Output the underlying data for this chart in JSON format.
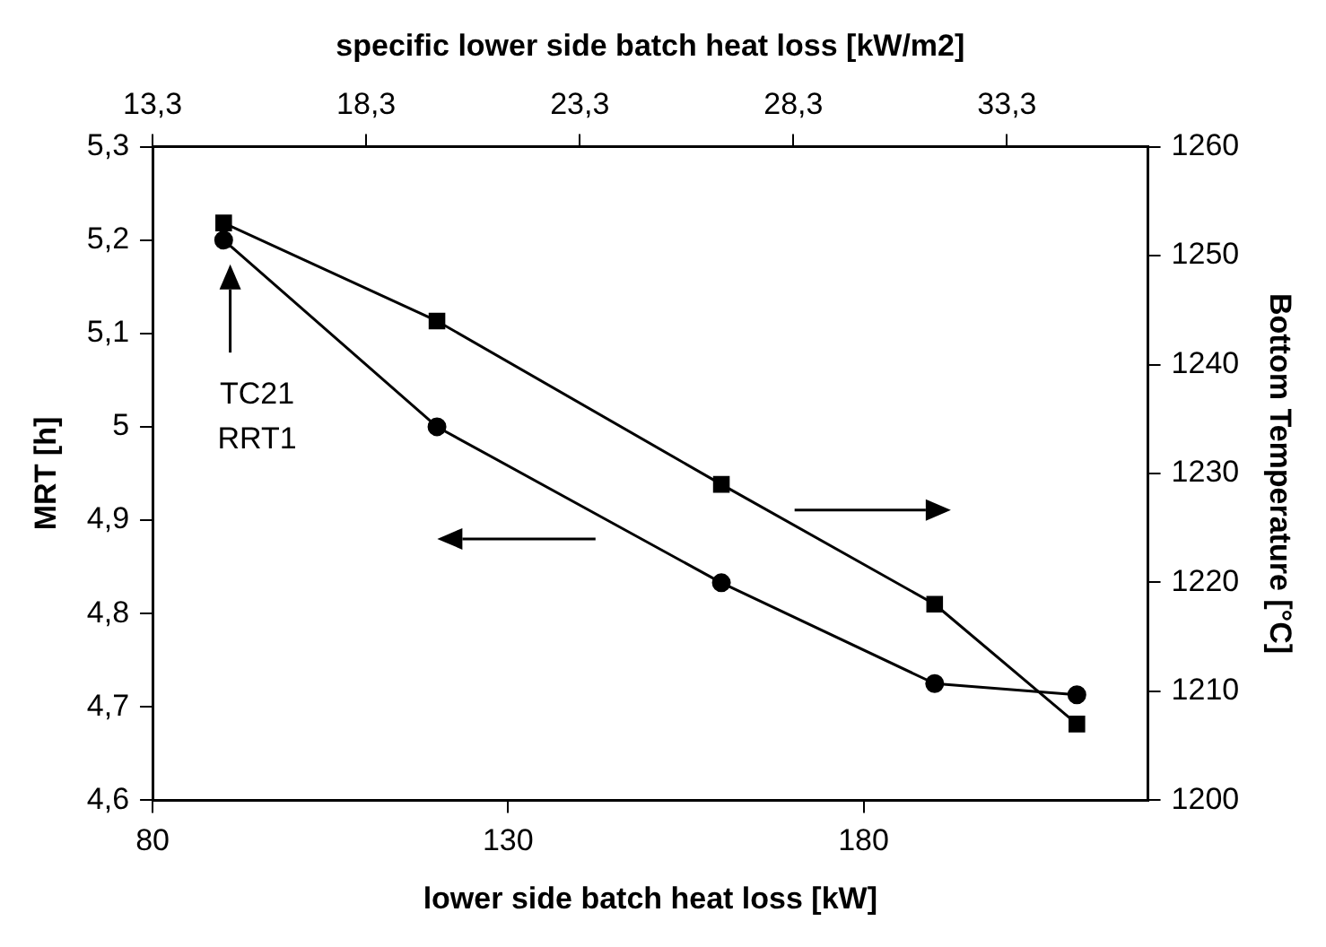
{
  "chart_data": {
    "type": "line",
    "xlabel": "lower side batch heat loss [kW]",
    "x2label": "specific lower side batch heat loss [kW/m2]",
    "ylabel": "MRT [h]",
    "y2label": "Bottom Temperature [°C]",
    "x": [
      90,
      120,
      160,
      190,
      210
    ],
    "series": [
      {
        "color": "#000000",
        "marker": "circle",
        "values": [
          5.2,
          5.0,
          4.833,
          4.725,
          4.713
        ]
      },
      {
        "color": "#000000",
        "marker": "square",
        "axis": "y2",
        "values": [
          1253,
          1244,
          1229,
          1218,
          1207
        ]
      }
    ],
    "xlim": [
      80,
      220
    ],
    "xticks": [
      80,
      130,
      180
    ],
    "x2lim": [
      13.3,
      36.6
    ],
    "x2ticks": [
      {
        "value": 13.3,
        "label": "13,3"
      },
      {
        "value": 18.3,
        "label": "18,3"
      },
      {
        "value": 23.3,
        "label": "23,3"
      },
      {
        "value": 28.3,
        "label": "28,3"
      },
      {
        "value": 33.3,
        "label": "33,3"
      }
    ],
    "ylim": [
      4.6,
      5.3
    ],
    "yticks": [
      {
        "value": 4.6,
        "label": "4,6"
      },
      {
        "value": 4.7,
        "label": "4,7"
      },
      {
        "value": 4.8,
        "label": "4,8"
      },
      {
        "value": 4.9,
        "label": "4,9"
      },
      5,
      {
        "value": 5.1,
        "label": "5,1"
      },
      {
        "value": 5.2,
        "label": "5,2"
      },
      {
        "value": 5.3,
        "label": "5,3"
      }
    ],
    "y2lim": [
      1200,
      1260
    ],
    "y2ticks": [
      1200,
      1210,
      1220,
      1230,
      1240,
      1250,
      1260
    ],
    "annotations": [
      "TC21\nRRT1"
    ],
    "grid": false,
    "legend": false,
    "line_style": "solid"
  }
}
